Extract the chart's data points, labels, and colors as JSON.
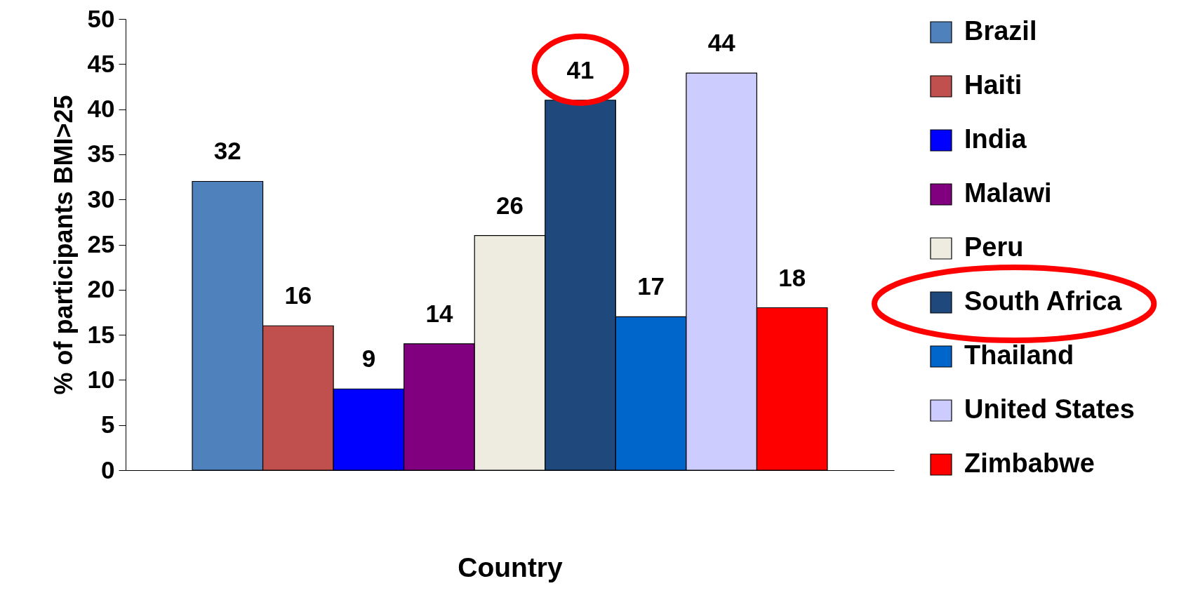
{
  "chart_data": {
    "type": "bar",
    "xlabel": "Country",
    "ylabel": "% of participants BMI>25",
    "categories": [
      null
    ],
    "series": [
      {
        "name": "Brazil",
        "color": "#4f81bd",
        "values": [
          32
        ]
      },
      {
        "name": "Haiti",
        "color": "#c0504d",
        "values": [
          16
        ]
      },
      {
        "name": "India",
        "color": "#0000ff",
        "values": [
          9
        ]
      },
      {
        "name": "Malawi",
        "color": "#800080",
        "values": [
          14
        ]
      },
      {
        "name": "Peru",
        "color": "#eeece1",
        "values": [
          26
        ]
      },
      {
        "name": "South Africa",
        "color": "#1f497d",
        "values": [
          41
        ]
      },
      {
        "name": "Thailand",
        "color": "#0066cc",
        "values": [
          17
        ]
      },
      {
        "name": "United States",
        "color": "#ccccff",
        "values": [
          44
        ]
      },
      {
        "name": "Zimbabwe",
        "color": "#ff0000",
        "values": [
          18
        ]
      }
    ],
    "ylim": [
      0,
      50
    ],
    "yticks": [
      0,
      5,
      10,
      15,
      20,
      25,
      30,
      35,
      40,
      45,
      50
    ],
    "data_labels": true,
    "legend": "right"
  }
}
